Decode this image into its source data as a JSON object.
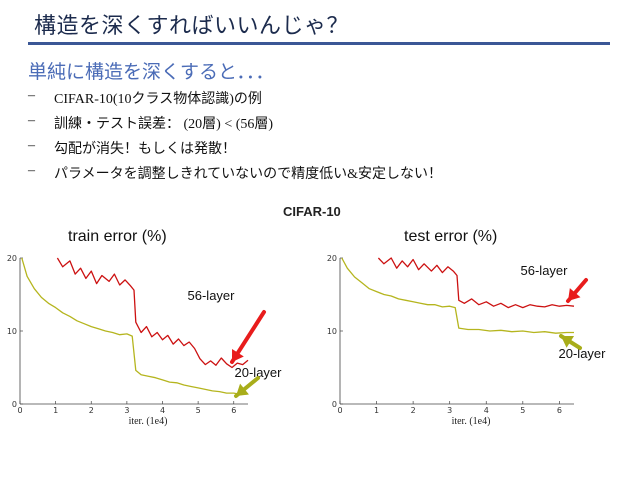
{
  "slide": {
    "title": "構造を深くすればいいんじゃ？",
    "subtitle": "単純に構造を深くすると．．．",
    "bullets": [
      {
        "dash": "–",
        "text": "CIFAR-10(10クラス物体認識)の例"
      },
      {
        "dash": "–",
        "text": "訓練・テスト誤差： (20層) < (56層)"
      },
      {
        "dash": "–",
        "text": "勾配が消失！もしくは発散！"
      },
      {
        "dash": "–",
        "text": "パラメータを調整しきれていないので精度低い&安定しない！"
      }
    ]
  },
  "figure": {
    "title": "CIFAR-10"
  },
  "colors": {
    "layer56": "#cc1111",
    "layer20": "#b5b51e",
    "arrow_red": "#e81c1c",
    "arrow_olive": "#a8ad1a",
    "title": "#1c2b4d",
    "rule": "#3b5796",
    "subtitle": "#4b6cb7"
  },
  "chart_data": [
    {
      "type": "line",
      "title": "train error (%)",
      "xlabel": "iter. (1e4)",
      "ylabel": "",
      "xlim": [
        0,
        6.4
      ],
      "ylim": [
        0,
        20
      ],
      "xticks": [
        "0",
        "1",
        "2",
        "3",
        "4",
        "5",
        "6"
      ],
      "yticks": [
        "0",
        "10",
        "20"
      ],
      "annotations": [
        "56-layer",
        "20-layer"
      ],
      "series": [
        {
          "name": "56-layer",
          "x": [
            1.05,
            1.2,
            1.4,
            1.55,
            1.7,
            1.85,
            2.0,
            2.15,
            2.3,
            2.5,
            2.65,
            2.8,
            2.95,
            3.1,
            3.2,
            3.25,
            3.4,
            3.55,
            3.7,
            3.85,
            4.0,
            4.15,
            4.3,
            4.45,
            4.6,
            4.75,
            4.9,
            5.05,
            5.2,
            5.35,
            5.5,
            5.65,
            5.8,
            5.95,
            6.1,
            6.25,
            6.4
          ],
          "values": [
            20,
            18.8,
            19.6,
            17.8,
            18.6,
            17.2,
            18.2,
            16.5,
            17.6,
            16.8,
            17.8,
            16.3,
            17.0,
            16.2,
            15.6,
            11.2,
            9.8,
            10.6,
            9.2,
            9.8,
            8.8,
            9.4,
            8.2,
            8.9,
            8.0,
            8.5,
            7.6,
            6.2,
            5.4,
            5.9,
            5.3,
            6.3,
            5.5,
            5.0,
            5.6,
            5.4,
            6.0
          ]
        },
        {
          "name": "20-layer",
          "x": [
            0.05,
            0.2,
            0.4,
            0.6,
            0.8,
            1.0,
            1.2,
            1.4,
            1.6,
            1.8,
            2.0,
            2.2,
            2.4,
            2.6,
            2.8,
            3.0,
            3.15,
            3.25,
            3.4,
            3.6,
            3.8,
            4.0,
            4.2,
            4.4,
            4.6,
            4.8,
            5.0,
            5.2,
            5.4,
            5.6,
            5.8,
            6.0,
            6.2,
            6.4
          ],
          "values": [
            20,
            17.5,
            15.8,
            14.6,
            13.8,
            13.2,
            12.5,
            12.0,
            11.4,
            11.0,
            10.6,
            10.3,
            10.0,
            9.8,
            9.5,
            9.6,
            9.3,
            4.6,
            4.0,
            3.8,
            3.6,
            3.3,
            3.0,
            2.9,
            2.6,
            2.4,
            2.2,
            2.0,
            1.8,
            1.7,
            1.5,
            1.5,
            1.3,
            1.4
          ]
        }
      ]
    },
    {
      "type": "line",
      "title": "test error (%)",
      "xlabel": "iter. (1e4)",
      "ylabel": "",
      "xlim": [
        0,
        6.4
      ],
      "ylim": [
        0,
        20
      ],
      "xticks": [
        "0",
        "1",
        "2",
        "3",
        "4",
        "5",
        "6"
      ],
      "yticks": [
        "0",
        "10",
        "20"
      ],
      "annotations": [
        "56-layer",
        "20-layer"
      ],
      "series": [
        {
          "name": "56-layer",
          "x": [
            1.05,
            1.2,
            1.4,
            1.55,
            1.7,
            1.85,
            2.0,
            2.15,
            2.3,
            2.5,
            2.65,
            2.8,
            2.95,
            3.1,
            3.2,
            3.25,
            3.4,
            3.6,
            3.8,
            4.0,
            4.2,
            4.4,
            4.6,
            4.8,
            5.0,
            5.2,
            5.4,
            5.6,
            5.8,
            6.0,
            6.2,
            6.4
          ],
          "values": [
            20,
            19.2,
            20,
            18.6,
            19.6,
            18.8,
            19.8,
            18.4,
            19.2,
            18.2,
            19.0,
            18.0,
            18.8,
            18.2,
            17.6,
            14.2,
            13.8,
            14.4,
            13.6,
            14.0,
            13.4,
            13.8,
            13.2,
            13.6,
            13.2,
            13.6,
            13.4,
            13.3,
            13.6,
            13.4,
            13.5,
            13.4
          ]
        },
        {
          "name": "20-layer",
          "x": [
            0.05,
            0.2,
            0.4,
            0.6,
            0.8,
            1.0,
            1.2,
            1.4,
            1.6,
            1.8,
            2.0,
            2.2,
            2.4,
            2.6,
            2.8,
            3.0,
            3.15,
            3.25,
            3.5,
            3.8,
            4.1,
            4.4,
            4.7,
            5.0,
            5.3,
            5.6,
            5.9,
            6.2,
            6.4
          ],
          "values": [
            20,
            18.6,
            17.4,
            16.6,
            15.8,
            15.4,
            15.0,
            14.8,
            14.4,
            14.2,
            14.0,
            13.8,
            13.6,
            13.6,
            13.3,
            13.4,
            13.2,
            10.4,
            10.2,
            10.2,
            10.0,
            10.1,
            9.9,
            10.0,
            9.8,
            9.9,
            9.7,
            9.8,
            9.8
          ]
        }
      ]
    }
  ]
}
